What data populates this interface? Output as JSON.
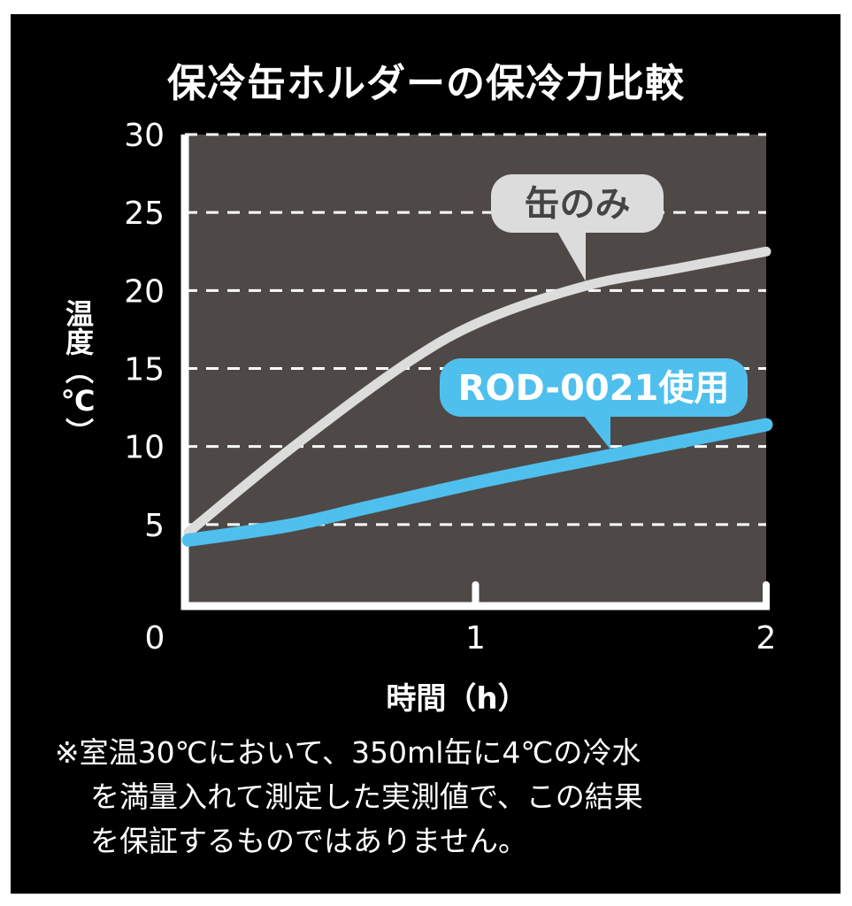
{
  "chart_data": {
    "type": "line",
    "title": "保冷缶ホルダーの保冷力比較",
    "xlabel": "時間（h）",
    "ylabel": "温度（℃）",
    "xlim": [
      0,
      2
    ],
    "ylim": [
      0,
      30
    ],
    "x_ticks": [
      "0",
      "1",
      "2"
    ],
    "y_ticks": [
      "5",
      "10",
      "15",
      "20",
      "25",
      "30"
    ],
    "grid": "horizontal dashed",
    "series": [
      {
        "name": "缶のみ",
        "color": "#dcdcdc",
        "x": [
          0.0,
          0.36,
          0.76,
          1.03,
          1.38,
          1.69,
          2.0
        ],
        "y": [
          4.5,
          9.8,
          15.3,
          18.1,
          20.3,
          21.4,
          22.5
        ]
      },
      {
        "name": "ROD-0021使用",
        "color": "#4fc0ee",
        "x": [
          0.0,
          0.36,
          0.63,
          1.03,
          1.43,
          2.0
        ],
        "y": [
          4.0,
          4.95,
          6.1,
          7.8,
          9.3,
          11.4
        ]
      }
    ],
    "plot_background": "#4e4947"
  },
  "note": {
    "lines": [
      "※室温30℃において、350ml缶に4℃の冷水",
      "を満量入れて測定した実測値で、この結果",
      "を保証するものではありません。"
    ]
  }
}
